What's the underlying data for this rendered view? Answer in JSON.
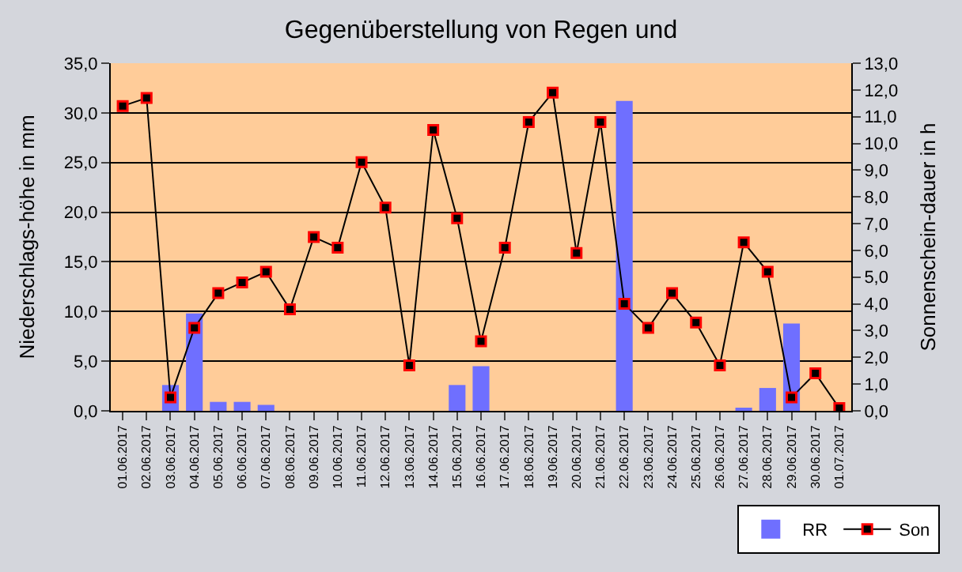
{
  "chart_data": {
    "type": "bar",
    "title": "Gegenüberstellung von Regen und",
    "ylabel": "Niederschlags-höhe in mm",
    "y2label": "Sonnenschein-dauer in h",
    "categories": [
      "01.06.2017",
      "02.06.2017",
      "03.06.2017",
      "04.06.2017",
      "05.06.2017",
      "06.06.2017",
      "07.06.2017",
      "08.06.2017",
      "09.06.2017",
      "10.06.2017",
      "11.06.2017",
      "12.06.2017",
      "13.06.2017",
      "14.06.2017",
      "15.06.2017",
      "16.06.2017",
      "17.06.2017",
      "18.06.2017",
      "19.06.2017",
      "20.06.2017",
      "21.06.2017",
      "22.06.2017",
      "23.06.2017",
      "24.06.2017",
      "25.06.2017",
      "26.06.2017",
      "27.06.2017",
      "28.06.2017",
      "29.06.2017",
      "30.06.2017",
      "01.07.2017"
    ],
    "series": [
      {
        "name": "RR",
        "color": "#6f6fff",
        "values": [
          0,
          0,
          2.6,
          9.8,
          0.9,
          0.9,
          0.6,
          0,
          0,
          0,
          0,
          0,
          0,
          0,
          2.6,
          4.5,
          0,
          0,
          0,
          0,
          0,
          31.2,
          0,
          0,
          0,
          0,
          0.3,
          2.3,
          8.8,
          0,
          0
        ]
      },
      {
        "name": "Son",
        "type": "line",
        "axis": "y2",
        "color": "#000000",
        "marker": "square",
        "values": [
          11.4,
          11.7,
          0.5,
          3.1,
          4.4,
          4.8,
          5.2,
          3.8,
          6.5,
          6.1,
          9.3,
          7.6,
          1.7,
          10.5,
          7.2,
          2.6,
          6.1,
          10.8,
          11.9,
          5.9,
          10.8,
          4.0,
          3.1,
          4.4,
          3.3,
          1.7,
          6.3,
          5.2,
          0.5,
          1.4,
          0.1
        ]
      }
    ],
    "ylim": [
      0,
      35
    ],
    "yticks": [
      {
        "value": 0,
        "label": "0,0"
      },
      {
        "value": 5,
        "label": "5,0"
      },
      {
        "value": 10,
        "label": "10,0"
      },
      {
        "value": 15,
        "label": "15,0"
      },
      {
        "value": 20,
        "label": "20,0"
      },
      {
        "value": 25,
        "label": "25,0"
      },
      {
        "value": 30,
        "label": "30,0"
      },
      {
        "value": 35,
        "label": "35,0"
      }
    ],
    "y2lim": [
      0,
      13
    ],
    "y2ticks": [
      {
        "value": 0,
        "label": "0,0"
      },
      {
        "value": 1,
        "label": "1,0"
      },
      {
        "value": 2,
        "label": "2,0"
      },
      {
        "value": 3,
        "label": "3,0"
      },
      {
        "value": 4,
        "label": "4,0"
      },
      {
        "value": 5,
        "label": "5,0"
      },
      {
        "value": 6,
        "label": "6,0"
      },
      {
        "value": 7,
        "label": "7,0"
      },
      {
        "value": 8,
        "label": "8,0"
      },
      {
        "value": 9,
        "label": "9,0"
      },
      {
        "value": 10,
        "label": "10,0"
      },
      {
        "value": 11,
        "label": "11,0"
      },
      {
        "value": 12,
        "label": "12,0"
      },
      {
        "value": 13,
        "label": "13,0"
      }
    ],
    "grid": "y",
    "legend": "bottom right"
  }
}
